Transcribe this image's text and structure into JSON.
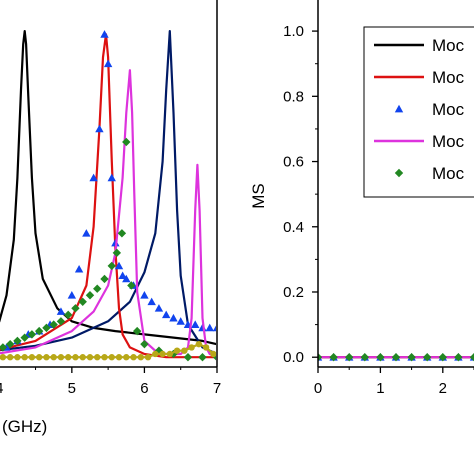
{
  "chart_data": [
    {
      "type": "line",
      "panel": "left",
      "xlabel": "(GHz)",
      "ylabel": "",
      "xlim": [
        3.9,
        7.0
      ],
      "ylim": [
        -0.03,
        1.08
      ],
      "xticks": [
        "4",
        "5",
        "6",
        "7"
      ],
      "yticks": [],
      "legend": "none",
      "grid": false,
      "series": [
        {
          "style": "line",
          "color": "#000000",
          "x": [
            3.95,
            4.0,
            4.1,
            4.2,
            4.25,
            4.3,
            4.33,
            4.35,
            4.37,
            4.4,
            4.45,
            4.5,
            4.6,
            4.8,
            5.0,
            5.3,
            5.6,
            6.0,
            6.4,
            6.8,
            7.0
          ],
          "y": [
            0.08,
            0.11,
            0.19,
            0.36,
            0.55,
            0.82,
            0.96,
            1.0,
            0.96,
            0.8,
            0.55,
            0.38,
            0.24,
            0.15,
            0.11,
            0.09,
            0.08,
            0.07,
            0.06,
            0.05,
            0.04
          ]
        },
        {
          "style": "line",
          "color": "#001a66",
          "x": [
            3.95,
            4.5,
            5.0,
            5.5,
            5.8,
            6.0,
            6.15,
            6.25,
            6.3,
            6.35,
            6.4,
            6.45,
            6.5,
            6.6,
            6.8,
            7.0
          ],
          "y": [
            0.02,
            0.035,
            0.06,
            0.11,
            0.17,
            0.26,
            0.38,
            0.6,
            0.82,
            1.0,
            0.75,
            0.45,
            0.25,
            0.1,
            0.03,
            0.01
          ]
        },
        {
          "style": "line",
          "color": "#dd1111",
          "x": [
            3.95,
            4.5,
            5.0,
            5.2,
            5.3,
            5.38,
            5.43,
            5.47,
            5.5,
            5.55,
            5.6,
            5.65,
            5.7,
            5.8,
            6.0,
            6.3,
            7.0
          ],
          "y": [
            0.02,
            0.05,
            0.12,
            0.22,
            0.4,
            0.7,
            0.92,
            0.99,
            0.92,
            0.6,
            0.33,
            0.15,
            0.07,
            0.03,
            0.01,
            0.0,
            0.0
          ]
        },
        {
          "style": "markers",
          "marker": "triangle",
          "color": "#1144ee",
          "x": [
            3.95,
            4.1,
            4.25,
            4.4,
            4.55,
            4.7,
            4.85,
            5.0,
            5.1,
            5.2,
            5.3,
            5.38,
            5.45,
            5.5,
            5.55,
            5.6,
            5.65,
            5.7,
            5.75,
            5.85,
            6.0,
            6.1,
            6.2,
            6.3,
            6.4,
            6.5,
            6.6,
            6.7,
            6.8,
            6.9,
            7.0
          ],
          "y": [
            0.02,
            0.03,
            0.05,
            0.07,
            0.08,
            0.1,
            0.14,
            0.19,
            0.27,
            0.38,
            0.55,
            0.7,
            0.99,
            0.9,
            0.55,
            0.35,
            0.28,
            0.25,
            0.24,
            0.22,
            0.19,
            0.17,
            0.15,
            0.13,
            0.12,
            0.11,
            0.1,
            0.1,
            0.09,
            0.09,
            0.09
          ]
        },
        {
          "style": "line",
          "color": "#dd33dd",
          "x": [
            3.95,
            4.5,
            5.0,
            5.3,
            5.5,
            5.6,
            5.7,
            5.75,
            5.8,
            5.83,
            5.86,
            5.9,
            6.0,
            6.2,
            6.5,
            6.6,
            6.65,
            6.7,
            6.73,
            6.76,
            6.8,
            6.85,
            6.9,
            7.0
          ],
          "y": [
            0.01,
            0.03,
            0.08,
            0.14,
            0.22,
            0.32,
            0.55,
            0.75,
            0.88,
            0.75,
            0.5,
            0.2,
            0.05,
            0.01,
            0.01,
            0.03,
            0.12,
            0.45,
            0.59,
            0.45,
            0.12,
            0.03,
            0.01,
            0.0
          ]
        },
        {
          "style": "markers",
          "marker": "diamond",
          "color": "#228822",
          "x": [
            3.95,
            4.05,
            4.15,
            4.25,
            4.35,
            4.45,
            4.55,
            4.65,
            4.75,
            4.85,
            4.95,
            5.05,
            5.15,
            5.25,
            5.35,
            5.45,
            5.55,
            5.62,
            5.69,
            5.75,
            5.82,
            5.9,
            6.0,
            6.2,
            6.4,
            6.6,
            6.8,
            7.0
          ],
          "y": [
            0.02,
            0.03,
            0.04,
            0.05,
            0.06,
            0.07,
            0.08,
            0.09,
            0.1,
            0.11,
            0.13,
            0.15,
            0.17,
            0.19,
            0.21,
            0.24,
            0.28,
            0.32,
            0.38,
            0.66,
            0.22,
            0.08,
            0.04,
            0.02,
            0.01,
            0.0,
            0.0,
            0.0
          ]
        },
        {
          "style": "line+markers",
          "marker": "circle",
          "color": "#b8a818",
          "x": [
            3.95,
            4.05,
            4.15,
            4.25,
            4.35,
            4.45,
            4.55,
            4.65,
            4.75,
            4.85,
            4.95,
            5.05,
            5.15,
            5.25,
            5.35,
            5.45,
            5.55,
            5.65,
            5.75,
            5.85,
            5.95,
            6.05,
            6.15,
            6.25,
            6.35,
            6.45,
            6.55,
            6.65,
            6.75,
            6.85,
            6.95
          ],
          "y": [
            0.0,
            0.0,
            0.0,
            0.0,
            0.0,
            0.0,
            0.0,
            0.0,
            0.0,
            0.0,
            0.0,
            0.0,
            0.0,
            0.0,
            0.0,
            0.0,
            0.0,
            0.0,
            0.0,
            0.0,
            0.0,
            0.0,
            0.01,
            0.01,
            0.01,
            0.02,
            0.02,
            0.03,
            0.04,
            0.03,
            0.01
          ]
        }
      ]
    },
    {
      "type": "line",
      "panel": "right",
      "xlabel": "",
      "ylabel": "MS",
      "xlim": [
        0,
        2.5
      ],
      "ylim": [
        -0.03,
        1.08
      ],
      "xticks": [
        "0",
        "1",
        "2"
      ],
      "yticks": [
        "0.0",
        "0.2",
        "0.4",
        "0.6",
        "0.8",
        "1.0"
      ],
      "legend": "top-right",
      "grid": false,
      "legend_entries": [
        {
          "label": "Moc",
          "style": "line",
          "color": "#000000"
        },
        {
          "label": "Moc",
          "style": "line",
          "color": "#dd1111"
        },
        {
          "label": "Moc",
          "style": "marker",
          "marker": "triangle",
          "color": "#1144ee"
        },
        {
          "label": "Moc",
          "style": "line",
          "color": "#dd33dd"
        },
        {
          "label": "Moc",
          "style": "marker",
          "marker": "diamond",
          "color": "#228822"
        }
      ],
      "series": [
        {
          "style": "line",
          "color": "#000000",
          "x": [
            0,
            2.5
          ],
          "y": [
            0.0,
            0.0
          ]
        },
        {
          "style": "line",
          "color": "#dd1111",
          "x": [
            0,
            2.5
          ],
          "y": [
            0.0,
            0.0
          ]
        },
        {
          "style": "markers",
          "marker": "triangle",
          "color": "#1144ee",
          "x": [
            0,
            0.25,
            0.5,
            0.75,
            1.0,
            1.25,
            1.5,
            1.75,
            2.0,
            2.25,
            2.5
          ],
          "y": [
            0,
            0,
            0,
            0,
            0,
            0,
            0,
            0,
            0,
            0,
            0
          ]
        },
        {
          "style": "line",
          "color": "#dd33dd",
          "x": [
            0,
            2.5
          ],
          "y": [
            0.0,
            0.0
          ]
        },
        {
          "style": "markers",
          "marker": "diamond",
          "color": "#228822",
          "x": [
            0,
            0.25,
            0.5,
            0.75,
            1.0,
            1.25,
            1.5,
            1.75,
            2.0,
            2.25,
            2.5
          ],
          "y": [
            0,
            0,
            0,
            0,
            0,
            0,
            0,
            0,
            0,
            0,
            0
          ]
        }
      ]
    }
  ]
}
